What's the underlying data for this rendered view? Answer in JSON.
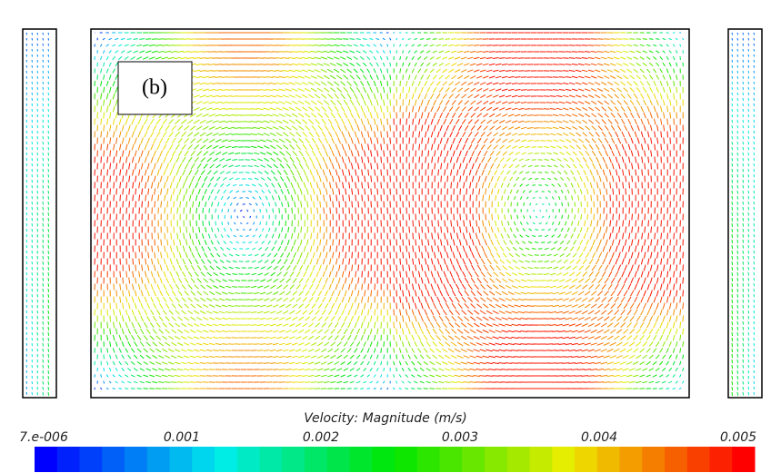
{
  "chart_data": {
    "type": "vector-field",
    "panel_label": "(b)",
    "colorbar": {
      "title": "Velocity: Magnitude (m/s)",
      "xlim": [
        7e-06,
        0.005
      ],
      "xticks": [
        {
          "value": 7e-06,
          "label": "7.e-006"
        },
        0.001,
        0.002,
        0.003,
        0.004,
        0.005
      ]
    }
  }
}
